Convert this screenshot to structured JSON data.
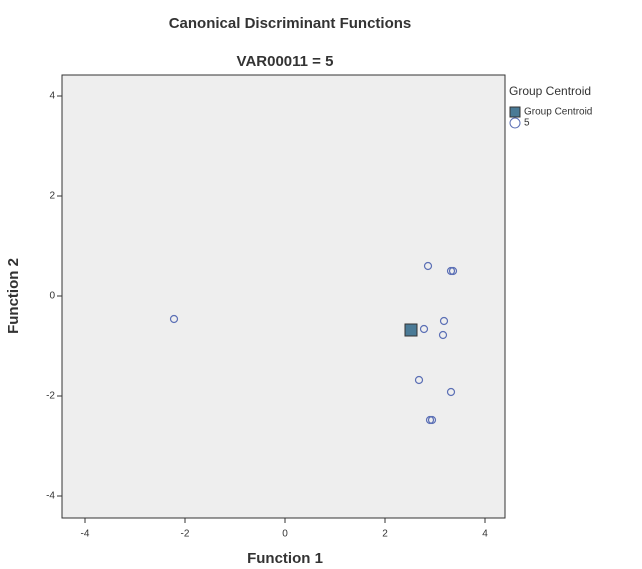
{
  "chart_data": {
    "type": "scatter",
    "title": "Canonical Discriminant Functions",
    "subtitle": "VAR00011 = 5",
    "x_label": "Function 1",
    "y_label": "Function 2",
    "legend_title": "Group Centroid",
    "legend_position": "right",
    "xlim": [
      -4.46,
      4.4
    ],
    "ylim": [
      -4.44,
      4.42
    ],
    "xticks": [
      -4,
      -2,
      0,
      2,
      4
    ],
    "yticks": [
      -4,
      -2,
      0,
      2,
      4
    ],
    "series": [
      {
        "name": "Group Centroid",
        "marker": "square",
        "color": "#4a7a96",
        "x": [
          2.52
        ],
        "values": [
          -0.68
        ]
      },
      {
        "name": "5",
        "marker": "circle",
        "color": "#5b6fb5",
        "x": [
          -2.22,
          2.86,
          3.32,
          3.36,
          2.78,
          3.18,
          3.16,
          2.68,
          3.32,
          2.9,
          2.94
        ],
        "values": [
          -0.46,
          0.6,
          0.5,
          0.5,
          -0.66,
          -0.5,
          -0.78,
          -1.68,
          -1.92,
          -2.48,
          -2.48
        ]
      }
    ]
  }
}
